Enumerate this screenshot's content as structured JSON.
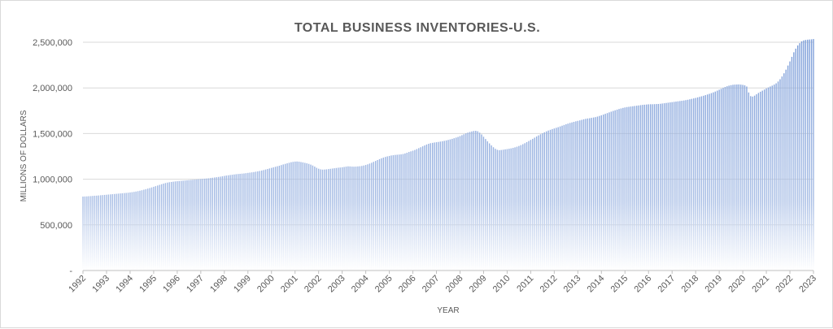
{
  "chart_data": {
    "type": "bar",
    "title": "TOTAL BUSINESS INVENTORIES-U.S.",
    "xlabel": "YEAR",
    "ylabel": "MILLIONS OF DOLLARS",
    "ylim": [
      0,
      2500000
    ],
    "yticks": [
      0,
      500000,
      1000000,
      1500000,
      2000000,
      2500000
    ],
    "ytick_labels": [
      "-",
      "500,000",
      "1,000,000",
      "1,500,000",
      "2,000,000",
      "2,500,000"
    ],
    "xtick_labels": [
      "1992",
      "1993",
      "1994",
      "1995",
      "1996",
      "1997",
      "1998",
      "1999",
      "2000",
      "2001",
      "2002",
      "2003",
      "2004",
      "2005",
      "2006",
      "2007",
      "2008",
      "2009",
      "2010",
      "2011",
      "2012",
      "2013",
      "2014",
      "2015",
      "2016",
      "2017",
      "2018",
      "2019",
      "2020",
      "2021",
      "2022",
      "2023"
    ],
    "frequency": "monthly",
    "start": "1992-01",
    "grid": true,
    "bar_color": "#8eaadb",
    "values_thousands": [
      810,
      811,
      812,
      814,
      815,
      817,
      819,
      820,
      822,
      824,
      826,
      828,
      830,
      832,
      834,
      836,
      838,
      840,
      842,
      844,
      846,
      848,
      850,
      852,
      855,
      858,
      861,
      865,
      869,
      874,
      879,
      885,
      891,
      897,
      903,
      910,
      917,
      924,
      931,
      938,
      945,
      952,
      958,
      963,
      967,
      970,
      973,
      976,
      978,
      980,
      982,
      984,
      986,
      988,
      990,
      992,
      994,
      996,
      998,
      1000,
      1002,
      1004,
      1006,
      1008,
      1010,
      1013,
      1016,
      1019,
      1022,
      1025,
      1028,
      1032,
      1036,
      1040,
      1043,
      1046,
      1049,
      1052,
      1055,
      1057,
      1059,
      1061,
      1063,
      1066,
      1069,
      1072,
      1075,
      1078,
      1082,
      1086,
      1090,
      1095,
      1100,
      1106,
      1112,
      1118,
      1124,
      1130,
      1136,
      1142,
      1148,
      1155,
      1162,
      1168,
      1174,
      1180,
      1186,
      1190,
      1193,
      1194,
      1192,
      1188,
      1184,
      1179,
      1174,
      1168,
      1160,
      1150,
      1138,
      1125,
      1115,
      1108,
      1105,
      1106,
      1108,
      1111,
      1114,
      1117,
      1120,
      1123,
      1126,
      1128,
      1131,
      1134,
      1138,
      1141,
      1140,
      1138,
      1137,
      1138,
      1140,
      1142,
      1145,
      1150,
      1156,
      1163,
      1171,
      1180,
      1190,
      1200,
      1210,
      1220,
      1229,
      1237,
      1244,
      1250,
      1255,
      1260,
      1263,
      1266,
      1268,
      1270,
      1272,
      1276,
      1282,
      1290,
      1298,
      1305,
      1312,
      1320,
      1330,
      1340,
      1350,
      1360,
      1370,
      1380,
      1388,
      1394,
      1398,
      1402,
      1405,
      1408,
      1412,
      1416,
      1420,
      1425,
      1430,
      1436,
      1442,
      1449,
      1456,
      1463,
      1472,
      1482,
      1492,
      1502,
      1510,
      1517,
      1523,
      1528,
      1530,
      1525,
      1510,
      1490,
      1465,
      1440,
      1415,
      1392,
      1370,
      1350,
      1333,
      1322,
      1318,
      1320,
      1323,
      1327,
      1330,
      1334,
      1338,
      1343,
      1349,
      1356,
      1364,
      1373,
      1383,
      1394,
      1406,
      1418,
      1430,
      1442,
      1455,
      1468,
      1480,
      1492,
      1503,
      1514,
      1524,
      1533,
      1541,
      1549,
      1556,
      1563,
      1570,
      1578,
      1586,
      1594,
      1602,
      1609,
      1616,
      1622,
      1628,
      1634,
      1639,
      1644,
      1650,
      1656,
      1661,
      1665,
      1668,
      1672,
      1676,
      1680,
      1686,
      1693,
      1700,
      1708,
      1716,
      1724,
      1732,
      1740,
      1748,
      1755,
      1762,
      1769,
      1775,
      1781,
      1786,
      1790,
      1793,
      1796,
      1799,
      1802,
      1805,
      1808,
      1811,
      1814,
      1816,
      1818,
      1820,
      1821,
      1821,
      1822,
      1823,
      1824,
      1826,
      1829,
      1832,
      1835,
      1838,
      1841,
      1844,
      1847,
      1850,
      1853,
      1856,
      1859,
      1862,
      1866,
      1870,
      1875,
      1880,
      1885,
      1890,
      1896,
      1902,
      1908,
      1914,
      1921,
      1928,
      1935,
      1943,
      1951,
      1960,
      1970,
      1980,
      1990,
      2000,
      2010,
      2018,
      2025,
      2030,
      2034,
      2036,
      2037,
      2038,
      2036,
      2033,
      2028,
      2015,
      1950,
      1910,
      1905,
      1915,
      1930,
      1945,
      1958,
      1970,
      1982,
      1994,
      2005,
      2015,
      2025,
      2036,
      2050,
      2070,
      2095,
      2125,
      2160,
      2200,
      2245,
      2290,
      2340,
      2390,
      2430,
      2465,
      2490,
      2510,
      2520,
      2525,
      2528,
      2530,
      2532,
      2535
    ]
  }
}
